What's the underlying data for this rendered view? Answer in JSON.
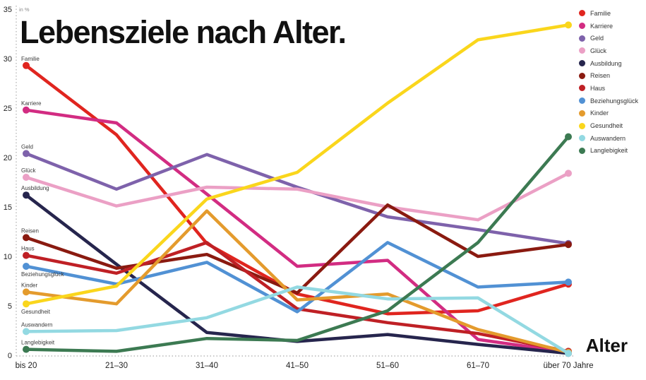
{
  "title": "Lebensziele nach Alter.",
  "y_axis": {
    "unit_label": "in %",
    "ticks": [
      0,
      5,
      10,
      15,
      20,
      25,
      30,
      35
    ]
  },
  "x_axis": {
    "label": "Alter"
  },
  "chart_data": {
    "type": "line",
    "title": "Lebensziele nach Alter.",
    "xlabel": "Alter",
    "ylabel": "in %",
    "ylim": [
      0,
      35
    ],
    "grid": false,
    "legend_position": "top-right",
    "categories": [
      "bis 20",
      "21–30",
      "31–40",
      "41–50",
      "51–60",
      "61–70",
      "über 70 Jahre"
    ],
    "series": [
      {
        "name": "Familie",
        "color": "#e0251f",
        "values": [
          29.3,
          22.3,
          11.3,
          6.2,
          4.2,
          4.5,
          7.2
        ]
      },
      {
        "name": "Karriere",
        "color": "#d22c82",
        "values": [
          24.8,
          23.5,
          16.3,
          9.0,
          9.6,
          1.6,
          0.3
        ]
      },
      {
        "name": "Geld",
        "color": "#7e62ab",
        "values": [
          20.4,
          16.8,
          20.3,
          17.0,
          14.0,
          12.7,
          11.3
        ]
      },
      {
        "name": "Glück",
        "color": "#eba0c5",
        "values": [
          18.0,
          15.1,
          17.0,
          16.8,
          15.0,
          13.7,
          18.4
        ]
      },
      {
        "name": "Ausbildung",
        "color": "#26254d",
        "values": [
          16.2,
          9.2,
          2.3,
          1.4,
          2.1,
          1.1,
          0.2
        ]
      },
      {
        "name": "Reisen",
        "color": "#8a1a10",
        "values": [
          11.9,
          8.8,
          10.2,
          6.3,
          15.2,
          10.0,
          11.2
        ]
      },
      {
        "name": "Haus",
        "color": "#bf2025",
        "values": [
          10.1,
          8.3,
          11.4,
          4.7,
          3.3,
          2.2,
          0.4
        ]
      },
      {
        "name": "Beziehungsglück",
        "color": "#5191d4",
        "values": [
          9.0,
          7.2,
          9.4,
          4.4,
          11.4,
          6.9,
          7.4
        ],
        "label_below": true
      },
      {
        "name": "Kinder",
        "color": "#e49b2d",
        "values": [
          6.4,
          5.2,
          14.6,
          5.6,
          6.2,
          2.6,
          0.3
        ]
      },
      {
        "name": "Gesundheit",
        "color": "#fad61c",
        "values": [
          5.2,
          7.0,
          15.8,
          18.5,
          25.5,
          31.9,
          33.4
        ],
        "label_below": true
      },
      {
        "name": "Auswandern",
        "color": "#93d9e2",
        "values": [
          2.4,
          2.5,
          3.8,
          6.9,
          5.7,
          5.8,
          0.2
        ]
      },
      {
        "name": "Langlebigkeit",
        "color": "#3c7a52",
        "values": [
          0.6,
          0.4,
          1.7,
          1.5,
          4.5,
          11.4,
          22.1
        ]
      }
    ]
  }
}
